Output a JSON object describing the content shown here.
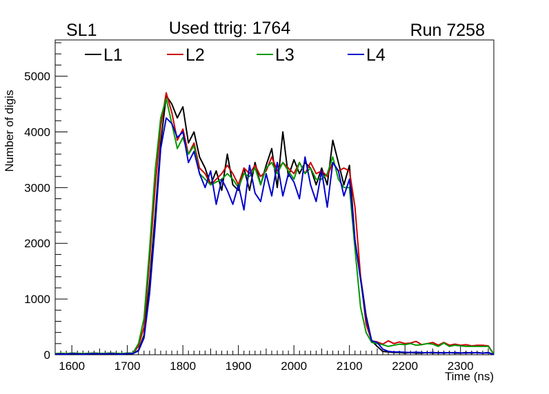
{
  "header": {
    "left": "SL1",
    "center": "Used ttrig: 1764",
    "right": "Run 7258"
  },
  "colors": {
    "L1": "#000000",
    "L2": "#cc0000",
    "L3": "#009900",
    "L4": "#0000cc"
  },
  "chart_data": {
    "type": "line",
    "title": "Used ttrig: 1764",
    "xlabel": "Time (ns)",
    "ylabel": "Number of digis",
    "xlim": [
      1570,
      2360
    ],
    "ylim": [
      0,
      5650
    ],
    "x_ticks": [
      1600,
      1700,
      1800,
      1900,
      2000,
      2100,
      2200,
      2300
    ],
    "y_ticks": [
      0,
      1000,
      2000,
      3000,
      4000,
      5000
    ],
    "legend_position": "top",
    "grid": false,
    "x": [
      1570,
      1580,
      1590,
      1600,
      1610,
      1620,
      1630,
      1640,
      1650,
      1660,
      1670,
      1680,
      1690,
      1700,
      1710,
      1720,
      1730,
      1740,
      1750,
      1760,
      1770,
      1780,
      1790,
      1800,
      1810,
      1820,
      1830,
      1840,
      1850,
      1860,
      1870,
      1880,
      1890,
      1900,
      1910,
      1920,
      1930,
      1940,
      1950,
      1960,
      1970,
      1980,
      1990,
      2000,
      2010,
      2020,
      2030,
      2040,
      2050,
      2060,
      2070,
      2080,
      2090,
      2100,
      2110,
      2120,
      2130,
      2140,
      2150,
      2160,
      2170,
      2180,
      2190,
      2200,
      2210,
      2220,
      2230,
      2240,
      2250,
      2260,
      2270,
      2280,
      2290,
      2300,
      2310,
      2320,
      2330,
      2340,
      2350,
      2360
    ],
    "series": [
      {
        "name": "L1",
        "values": [
          10,
          15,
          10,
          20,
          15,
          10,
          15,
          20,
          15,
          15,
          20,
          15,
          10,
          20,
          20,
          80,
          350,
          1300,
          2500,
          3800,
          4650,
          4500,
          4250,
          4450,
          3800,
          4000,
          3550,
          3350,
          3050,
          3300,
          2950,
          3600,
          3050,
          2950,
          3350,
          2950,
          3450,
          3050,
          3400,
          3700,
          3000,
          4000,
          3200,
          3500,
          3250,
          3450,
          3350,
          3050,
          3350,
          3050,
          3850,
          3450,
          3050,
          3400,
          2050,
          1400,
          700,
          250,
          150,
          60,
          50,
          40,
          40,
          30,
          40,
          30,
          30,
          40,
          30,
          40,
          30,
          40,
          30,
          30,
          40,
          30,
          40,
          30,
          40,
          5
        ]
      },
      {
        "name": "L2",
        "values": [
          20,
          25,
          20,
          30,
          25,
          20,
          25,
          30,
          25,
          25,
          30,
          25,
          20,
          30,
          30,
          150,
          500,
          1700,
          3000,
          4100,
          4700,
          4350,
          3850,
          4050,
          3600,
          3800,
          3350,
          3250,
          3050,
          3150,
          3250,
          3400,
          3250,
          3050,
          3350,
          3250,
          3400,
          3200,
          3300,
          3550,
          3300,
          3450,
          3350,
          3250,
          3450,
          3250,
          3450,
          3250,
          3300,
          3200,
          3450,
          3300,
          3350,
          3300,
          2650,
          1400,
          550,
          250,
          230,
          190,
          250,
          200,
          230,
          200,
          210,
          240,
          180,
          200,
          220,
          170,
          220,
          170,
          190,
          170,
          180,
          160,
          170,
          170,
          160,
          10
        ]
      },
      {
        "name": "L3",
        "values": [
          20,
          25,
          20,
          30,
          25,
          20,
          25,
          30,
          25,
          25,
          30,
          25,
          20,
          30,
          30,
          200,
          650,
          1900,
          3300,
          4250,
          4600,
          4150,
          3700,
          3900,
          3600,
          3750,
          3250,
          3150,
          3050,
          3100,
          3150,
          3250,
          3150,
          3000,
          3250,
          3200,
          3350,
          3050,
          3350,
          3450,
          3250,
          3450,
          3300,
          3150,
          3450,
          3250,
          3350,
          3150,
          3150,
          3250,
          3550,
          3150,
          3000,
          3000,
          1900,
          850,
          400,
          220,
          200,
          180,
          150,
          170,
          190,
          180,
          200,
          170,
          180,
          200,
          190,
          150,
          210,
          150,
          170,
          160,
          150,
          150,
          150,
          150,
          150,
          10
        ]
      },
      {
        "name": "L4",
        "values": [
          10,
          15,
          10,
          20,
          15,
          10,
          15,
          20,
          15,
          15,
          20,
          15,
          10,
          20,
          20,
          70,
          300,
          1100,
          2300,
          3700,
          4250,
          4150,
          3900,
          4000,
          3450,
          3650,
          3250,
          3000,
          3300,
          2700,
          3150,
          2950,
          2700,
          3050,
          2600,
          3400,
          2900,
          2750,
          3250,
          2850,
          3450,
          2850,
          3250,
          3100,
          2800,
          3550,
          3050,
          2750,
          3300,
          2650,
          3450,
          3300,
          2850,
          3150,
          2050,
          1350,
          650,
          250,
          220,
          100,
          60,
          50,
          50,
          45,
          40,
          45,
          40,
          35,
          45,
          30,
          40,
          35,
          40,
          35,
          30,
          40,
          35,
          30,
          35,
          5
        ]
      }
    ]
  }
}
